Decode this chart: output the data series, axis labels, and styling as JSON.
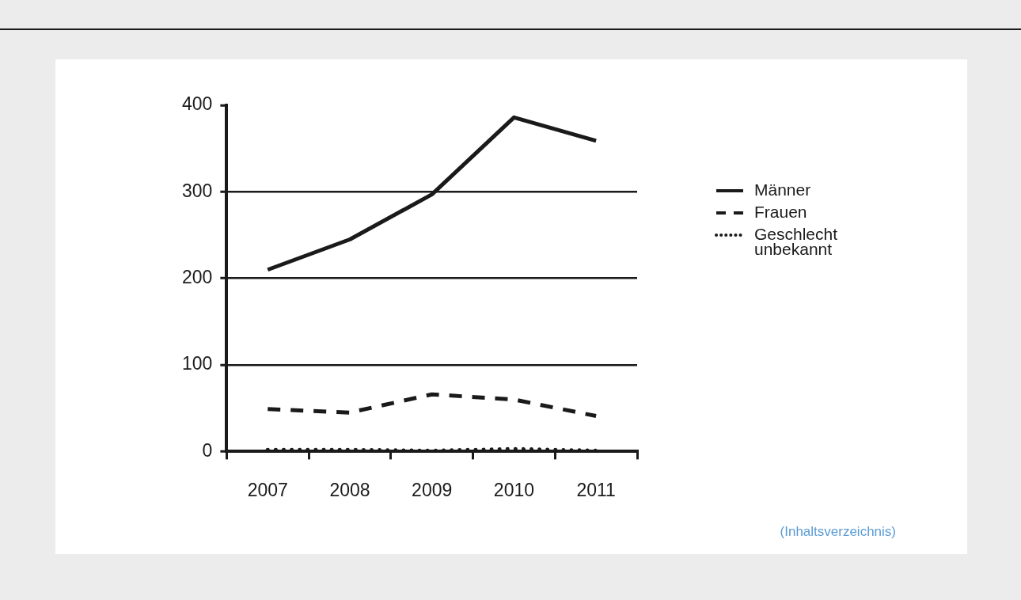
{
  "chart_data": {
    "type": "line",
    "categories": [
      "2007",
      "2008",
      "2009",
      "2010",
      "2011"
    ],
    "series": [
      {
        "name": "Männer",
        "color": "#1a1a1a",
        "line_style": "solid",
        "values": [
          210,
          245,
          297,
          386,
          359
        ]
      },
      {
        "name": "Frauen",
        "color": "#1a1a1a",
        "line_style": "dashed",
        "values": [
          49,
          45,
          66,
          60,
          41
        ]
      },
      {
        "name": "Geschlecht unbekannt",
        "color": "#1a1a1a",
        "line_style": "dotted",
        "values": [
          2,
          2,
          1,
          3,
          1
        ]
      }
    ],
    "ylim": [
      0,
      400
    ],
    "yticks": [
      0,
      100,
      200,
      300,
      400
    ],
    "grid": "y",
    "legend": "right",
    "marker": "none",
    "annotations": [
      "(Inhaltsverzeichnis)"
    ]
  }
}
